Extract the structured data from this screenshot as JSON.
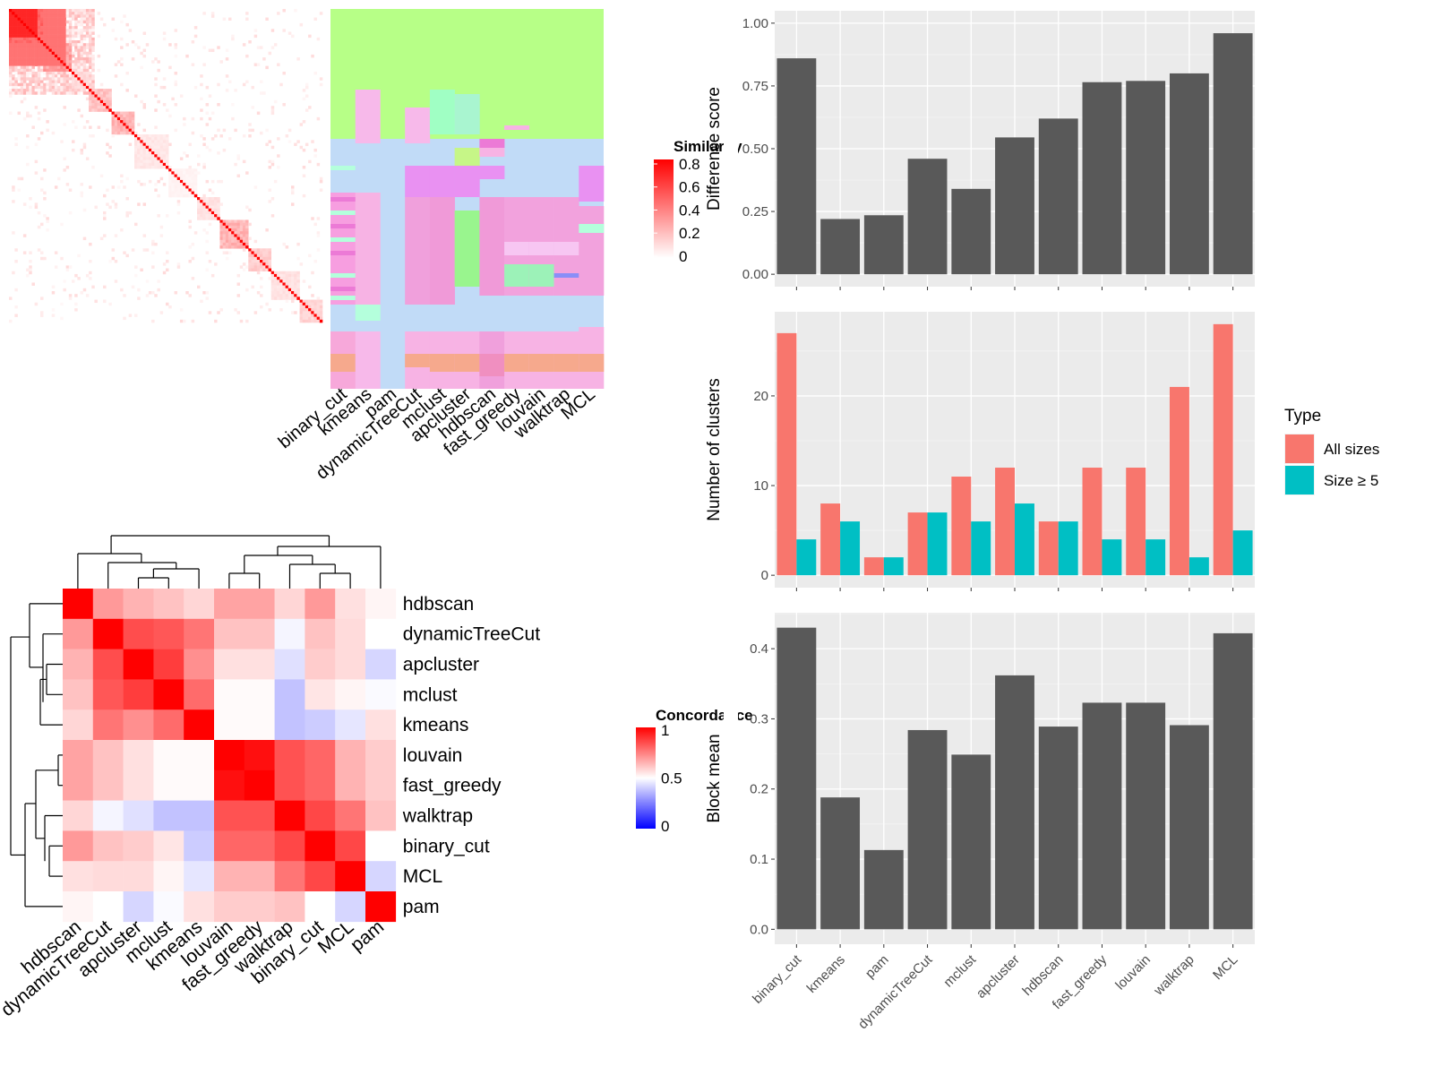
{
  "chart_data": [
    {
      "type": "heatmap",
      "panel": "similarity-matrix",
      "legend_title": "Similarity",
      "legend_ticks": [
        "0.8",
        "0.6",
        "0.4",
        "0.2",
        "0"
      ],
      "annotation_labels": [
        "binary_cut",
        "kmeans",
        "pam",
        "dynamicTreeCut",
        "mclust",
        "apcluster",
        "hdbscan",
        "fast_greedy",
        "louvain",
        "walktrap",
        "MCL"
      ]
    },
    {
      "type": "heatmap",
      "panel": "concordance-matrix",
      "legend_title": "Concordance",
      "legend_ticks": [
        "1",
        "0.5",
        "0"
      ],
      "labels": [
        "hdbscan",
        "dynamicTreeCut",
        "apcluster",
        "mclust",
        "kmeans",
        "louvain",
        "fast_greedy",
        "walktrap",
        "binary_cut",
        "MCL",
        "pam"
      ],
      "matrix": [
        [
          1.0,
          0.7,
          0.65,
          0.62,
          0.58,
          0.68,
          0.68,
          0.58,
          0.7,
          0.56,
          0.52
        ],
        [
          0.7,
          1.0,
          0.85,
          0.83,
          0.77,
          0.62,
          0.62,
          0.48,
          0.62,
          0.57,
          0.5
        ],
        [
          0.65,
          0.85,
          1.0,
          0.88,
          0.72,
          0.56,
          0.56,
          0.44,
          0.6,
          0.57,
          0.42
        ],
        [
          0.62,
          0.83,
          0.88,
          1.0,
          0.79,
          0.51,
          0.51,
          0.38,
          0.55,
          0.52,
          0.49
        ],
        [
          0.58,
          0.77,
          0.72,
          0.79,
          1.0,
          0.51,
          0.51,
          0.38,
          0.4,
          0.45,
          0.56
        ],
        [
          0.68,
          0.62,
          0.56,
          0.51,
          0.51,
          1.0,
          0.97,
          0.84,
          0.8,
          0.65,
          0.6
        ],
        [
          0.68,
          0.62,
          0.56,
          0.51,
          0.51,
          0.97,
          1.0,
          0.84,
          0.8,
          0.65,
          0.6
        ],
        [
          0.58,
          0.48,
          0.44,
          0.38,
          0.38,
          0.84,
          0.84,
          1.0,
          0.86,
          0.77,
          0.62
        ],
        [
          0.7,
          0.62,
          0.6,
          0.55,
          0.4,
          0.8,
          0.8,
          0.86,
          1.0,
          0.86,
          0.5
        ],
        [
          0.56,
          0.57,
          0.57,
          0.52,
          0.45,
          0.65,
          0.65,
          0.77,
          0.86,
          1.0,
          0.42
        ],
        [
          0.52,
          0.5,
          0.42,
          0.49,
          0.56,
          0.6,
          0.6,
          0.62,
          0.5,
          0.42,
          1.0
        ]
      ]
    },
    {
      "type": "bar",
      "panel": "difference-score",
      "categories": [
        "binary_cut",
        "kmeans",
        "pam",
        "dynamicTreeCut",
        "mclust",
        "apcluster",
        "hdbscan",
        "fast_greedy",
        "louvain",
        "walktrap",
        "MCL"
      ],
      "values": [
        0.86,
        0.22,
        0.235,
        0.46,
        0.34,
        0.545,
        0.62,
        0.765,
        0.77,
        0.8,
        0.96
      ],
      "ylabel": "Difference score",
      "ylim": [
        0,
        1
      ],
      "yticks": [
        "0.00",
        "0.25",
        "0.50",
        "0.75",
        "1.00"
      ],
      "color": "#595959"
    },
    {
      "type": "bar",
      "panel": "number-of-clusters",
      "categories": [
        "binary_cut",
        "kmeans",
        "pam",
        "dynamicTreeCut",
        "mclust",
        "apcluster",
        "hdbscan",
        "fast_greedy",
        "louvain",
        "walktrap",
        "MCL"
      ],
      "series": [
        {
          "name": "All sizes",
          "color": "#F8766D",
          "values": [
            27,
            8,
            2,
            7,
            11,
            12,
            6,
            12,
            12,
            21,
            28
          ]
        },
        {
          "name": "Size ≥ 5",
          "color": "#00BFC4",
          "values": [
            4,
            6,
            2,
            7,
            6,
            8,
            6,
            4,
            4,
            2,
            5
          ]
        }
      ],
      "ylabel": "Number of clusters",
      "ylim": [
        0,
        28
      ],
      "yticks": [
        "0",
        "10",
        "20"
      ],
      "legend_title": "Type",
      "legend_position": "right"
    },
    {
      "type": "bar",
      "panel": "block-mean",
      "categories": [
        "binary_cut",
        "kmeans",
        "pam",
        "dynamicTreeCut",
        "mclust",
        "apcluster",
        "hdbscan",
        "fast_greedy",
        "louvain",
        "walktrap",
        "MCL"
      ],
      "values": [
        0.43,
        0.188,
        0.113,
        0.284,
        0.249,
        0.362,
        0.289,
        0.323,
        0.323,
        0.291,
        0.422
      ],
      "ylabel": "Block mean",
      "ylim": [
        0,
        0.43
      ],
      "yticks": [
        "0.0",
        "0.1",
        "0.2",
        "0.3",
        "0.4"
      ],
      "color": "#595959"
    }
  ]
}
